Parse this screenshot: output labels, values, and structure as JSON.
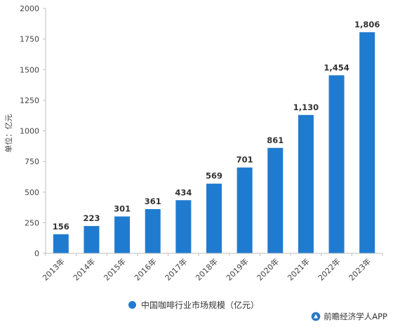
{
  "chart_data": {
    "type": "bar",
    "categories": [
      "2013年",
      "2014年",
      "2015年",
      "2016年",
      "2017年",
      "2018年",
      "2019年",
      "2020年",
      "2021年",
      "2022年",
      "2023年"
    ],
    "series": [
      {
        "name": "中国咖啡行业市场规模（亿元）",
        "values": [
          156,
          223,
          301,
          361,
          434,
          569,
          701,
          861,
          1130,
          1454,
          1806
        ]
      }
    ],
    "data_labels": [
      "156",
      "223",
      "301",
      "361",
      "434",
      "569",
      "701",
      "861",
      "1,130",
      "1,454",
      "1,806"
    ],
    "ylabel": "单位：亿元",
    "ylim": [
      0,
      2000
    ],
    "yticks": [
      0,
      250,
      500,
      750,
      1000,
      1250,
      1500,
      1750,
      2000
    ],
    "grid": false,
    "legend_position": "bottom",
    "bar_color": "#1f7bd0"
  },
  "legend": {
    "label": "中国咖啡行业市场规模（亿元）"
  },
  "source": {
    "label": "前瞻经济学人APP"
  },
  "colors": {
    "bar": "#1f7bd0",
    "axis": "#bfbfbf"
  }
}
